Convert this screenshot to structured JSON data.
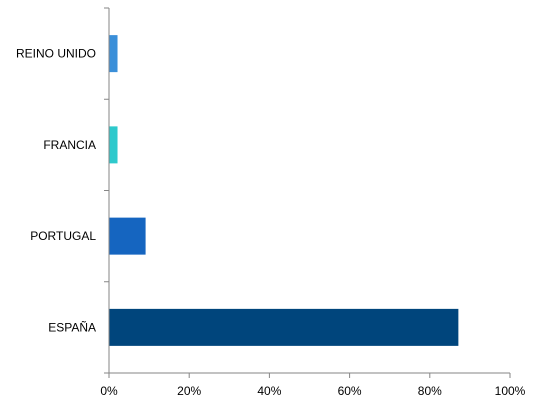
{
  "chart_data": {
    "type": "bar",
    "orientation": "horizontal",
    "title": "",
    "xlabel": "",
    "ylabel": "",
    "categories": [
      "REINO UNIDO",
      "FRANCIA",
      "PORTUGAL",
      "ESPAÑA"
    ],
    "values": [
      2,
      2,
      9,
      87
    ],
    "value_unit": "%",
    "xlim": [
      0,
      100
    ],
    "x_ticks": [
      "0%",
      "20%",
      "40%",
      "60%",
      "80%",
      "100%"
    ],
    "bar_colors": [
      "#3A8FD9",
      "#2EC9CC",
      "#1565C0",
      "#00457C"
    ],
    "axis_color": "#868686",
    "grid": false,
    "legend": "none"
  }
}
